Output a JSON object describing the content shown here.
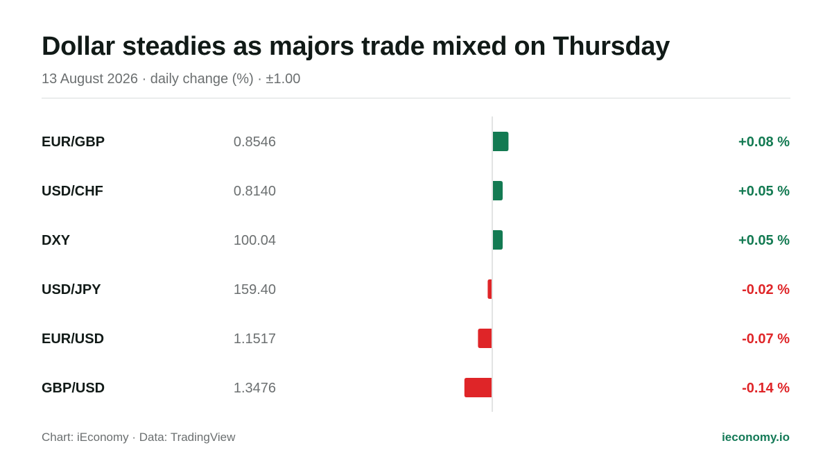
{
  "header": {
    "title": "Dollar steadies as majors trade mixed on Thursday",
    "subtitle": "13 August 2026 · daily change (%) · ±1.00"
  },
  "footer": {
    "source": "Chart: iEconomy · Data: TradingView",
    "site": "ieconomy.io"
  },
  "colors": {
    "positive": "#137a52",
    "negative": "#df2528",
    "axis": "#d9dcdc",
    "label": "#111a17",
    "price": "#6b6f70"
  },
  "chart_data": {
    "type": "bar",
    "orientation": "horizontal",
    "scale_label": "±1.00",
    "xlim": [
      -1.0,
      1.0
    ],
    "unit": "%",
    "grid": false,
    "legend": "none",
    "rows": [
      {
        "label": "EUR/GBP",
        "price": "0.8546",
        "change": 0.08,
        "change_label": "+0.08 %"
      },
      {
        "label": "USD/CHF",
        "price": "0.8140",
        "change": 0.05,
        "change_label": "+0.05 %"
      },
      {
        "label": "DXY",
        "price": "100.04",
        "change": 0.05,
        "change_label": "+0.05 %"
      },
      {
        "label": "USD/JPY",
        "price": "159.40",
        "change": -0.02,
        "change_label": "-0.02 %"
      },
      {
        "label": "EUR/USD",
        "price": "1.1517",
        "change": -0.07,
        "change_label": "-0.07 %"
      },
      {
        "label": "GBP/USD",
        "price": "1.3476",
        "change": -0.14,
        "change_label": "-0.14 %"
      }
    ]
  }
}
